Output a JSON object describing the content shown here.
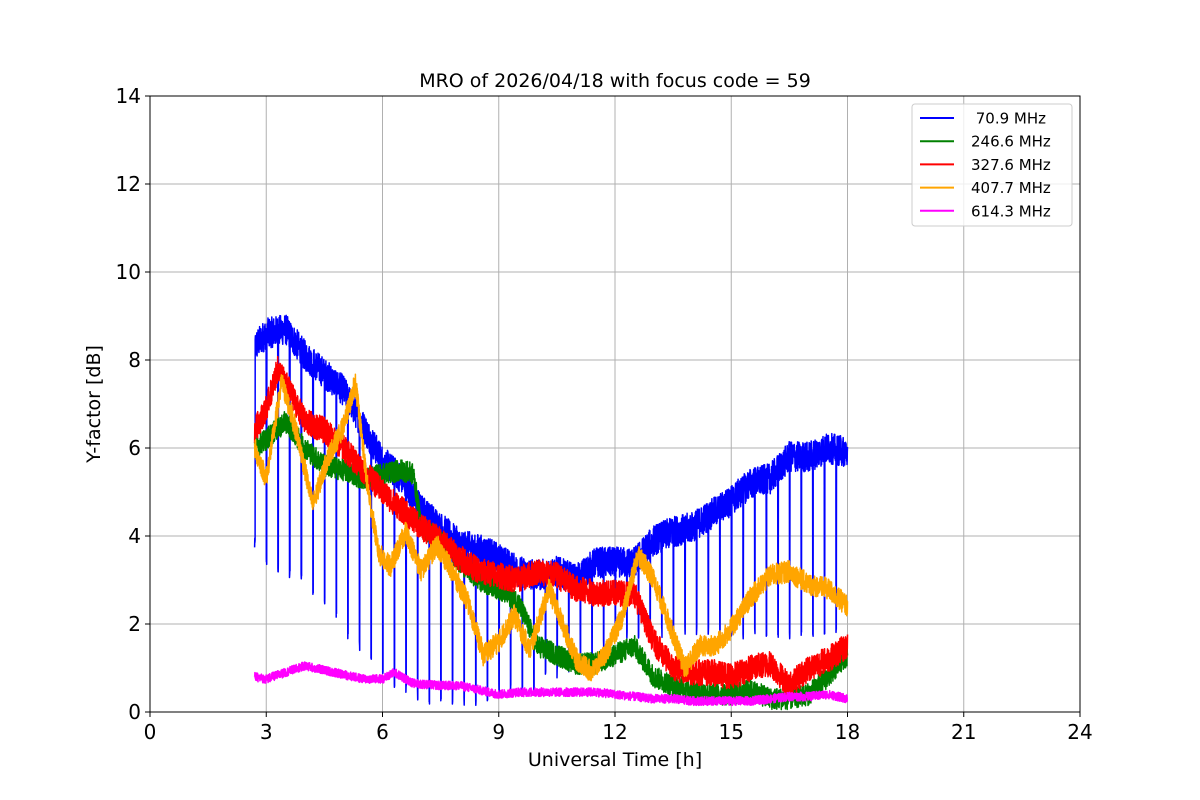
{
  "chart_data": {
    "type": "line",
    "title": "MRO of 2026/04/18 with focus code = 59",
    "xlabel": "Universal Time [h]",
    "ylabel": "Y-factor [dB]",
    "xlim": [
      0,
      24
    ],
    "ylim": [
      0,
      14
    ],
    "xticks": [
      0,
      3,
      6,
      9,
      12,
      15,
      18,
      21,
      24
    ],
    "yticks": [
      0,
      2,
      4,
      6,
      8,
      10,
      12,
      14
    ],
    "grid": true,
    "legend_position": "top-right",
    "series": [
      {
        "name": " 70.9 MHz",
        "color": "#0000ff",
        "noise": 0.35,
        "x": [
          2.7,
          3.0,
          3.5,
          4.0,
          4.5,
          5.0,
          5.5,
          6.0,
          6.5,
          7.0,
          7.5,
          8.0,
          8.5,
          9.0,
          9.5,
          10.0,
          10.5,
          11.0,
          11.5,
          12.0,
          12.5,
          13.0,
          13.5,
          14.0,
          14.5,
          15.0,
          15.5,
          16.0,
          16.5,
          17.0,
          17.5,
          18.0
        ],
        "y": [
          8.3,
          8.6,
          8.7,
          8.1,
          7.7,
          7.3,
          6.5,
          5.7,
          5.3,
          4.6,
          4.2,
          3.8,
          3.7,
          3.5,
          3.2,
          3.1,
          3.2,
          3.0,
          3.4,
          3.4,
          3.4,
          3.9,
          4.1,
          4.2,
          4.5,
          4.8,
          5.2,
          5.3,
          5.8,
          5.8,
          6.0,
          5.9
        ],
        "dip_start": 2.7,
        "dip_period": 0.3,
        "dip_depth": [
          3.8,
          3.5,
          3.3,
          3.2,
          3.0,
          2.8,
          2.6,
          2.3,
          1.8,
          1.5,
          1.2,
          0.8,
          0.6,
          0.5,
          0.4,
          0.3,
          0.3,
          0.3,
          0.3,
          0.3,
          0.4,
          0.5,
          0.5,
          0.5,
          0.6,
          0.8,
          0.9,
          1.0,
          1.1,
          1.3,
          1.5,
          1.8
        ]
      },
      {
        "name": "246.6 MHz",
        "color": "#008000",
        "noise": 0.25,
        "x": [
          2.7,
          3.0,
          3.5,
          4.0,
          4.5,
          5.0,
          5.5,
          6.0,
          6.5,
          6.8,
          7.0,
          7.5,
          8.0,
          8.5,
          9.0,
          9.5,
          10.0,
          10.5,
          11.0,
          11.5,
          12.0,
          12.5,
          13.0,
          13.5,
          14.0,
          14.5,
          15.0,
          15.5,
          16.0,
          16.5,
          17.0,
          17.5,
          18.0
        ],
        "y": [
          6.0,
          6.2,
          6.6,
          6.0,
          5.6,
          5.5,
          5.3,
          5.4,
          5.5,
          5.4,
          4.2,
          3.9,
          3.4,
          3.0,
          2.8,
          2.5,
          1.5,
          1.3,
          1.1,
          1.1,
          1.3,
          1.5,
          0.8,
          0.6,
          0.5,
          0.4,
          0.4,
          0.5,
          0.3,
          0.3,
          0.4,
          0.8,
          1.3
        ]
      },
      {
        "name": "327.6 MHz",
        "color": "#ff0000",
        "noise": 0.3,
        "x": [
          2.7,
          3.0,
          3.3,
          3.6,
          4.0,
          4.5,
          5.0,
          5.5,
          6.0,
          6.5,
          7.0,
          7.5,
          8.0,
          8.5,
          9.0,
          9.5,
          10.0,
          10.5,
          11.0,
          11.5,
          12.0,
          12.5,
          13.0,
          13.5,
          14.0,
          14.5,
          15.0,
          15.5,
          16.0,
          16.5,
          17.0,
          17.5,
          18.0
        ],
        "y": [
          6.4,
          6.9,
          7.8,
          7.3,
          6.6,
          6.4,
          6.0,
          5.5,
          5.0,
          4.6,
          4.2,
          3.9,
          3.5,
          3.2,
          3.1,
          3.0,
          3.2,
          3.1,
          2.8,
          2.7,
          2.7,
          2.7,
          1.6,
          1.0,
          0.9,
          0.9,
          0.8,
          1.0,
          1.1,
          0.6,
          1.0,
          1.2,
          1.5
        ]
      },
      {
        "name": "407.7 MHz",
        "color": "#ffa500",
        "noise": 0.25,
        "x": [
          2.7,
          3.0,
          3.4,
          3.8,
          4.2,
          4.6,
          5.0,
          5.3,
          5.6,
          5.9,
          6.2,
          6.6,
          7.0,
          7.4,
          7.8,
          8.2,
          8.6,
          9.0,
          9.4,
          9.8,
          10.3,
          10.6,
          11.0,
          11.4,
          11.8,
          12.2,
          12.6,
          13.0,
          13.4,
          13.8,
          14.2,
          14.6,
          15.0,
          15.5,
          16.0,
          16.5,
          17.0,
          17.5,
          18.0
        ],
        "y": [
          6.0,
          5.3,
          7.5,
          6.3,
          4.7,
          5.8,
          6.5,
          7.5,
          5.2,
          3.6,
          3.3,
          4.1,
          3.2,
          3.8,
          3.2,
          2.5,
          1.3,
          1.6,
          2.2,
          1.4,
          2.8,
          2.1,
          1.2,
          0.9,
          1.4,
          2.2,
          3.6,
          3.0,
          2.0,
          1.0,
          1.5,
          1.5,
          1.9,
          2.6,
          3.1,
          3.2,
          2.9,
          2.8,
          2.4
        ]
      },
      {
        "name": "614.3 MHz",
        "color": "#ff00ff",
        "noise": 0.1,
        "x": [
          2.7,
          3.0,
          3.5,
          4.0,
          4.5,
          5.0,
          5.5,
          6.0,
          6.3,
          6.8,
          7.5,
          8.0,
          8.5,
          9.0,
          9.5,
          10.0,
          10.5,
          11.0,
          11.5,
          12.0,
          12.5,
          13.0,
          13.5,
          14.0,
          14.5,
          15.0,
          15.5,
          16.0,
          16.5,
          17.0,
          17.5,
          18.0
        ],
        "y": [
          0.8,
          0.75,
          0.9,
          1.05,
          0.95,
          0.85,
          0.75,
          0.75,
          0.9,
          0.65,
          0.6,
          0.6,
          0.5,
          0.4,
          0.45,
          0.45,
          0.45,
          0.45,
          0.45,
          0.4,
          0.35,
          0.3,
          0.3,
          0.25,
          0.25,
          0.25,
          0.25,
          0.3,
          0.35,
          0.35,
          0.4,
          0.3
        ]
      }
    ]
  }
}
